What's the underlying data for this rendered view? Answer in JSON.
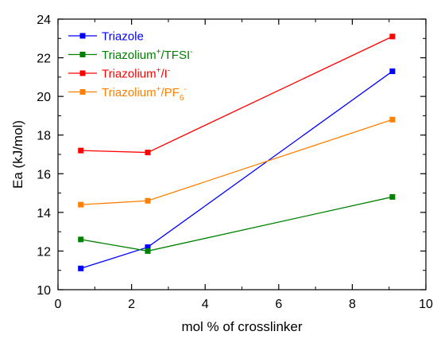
{
  "chart_data": {
    "type": "line",
    "title": "",
    "xlabel": "mol % of crosslinker",
    "ylabel": "Ea (kJ/mol)",
    "xlim": [
      0,
      10
    ],
    "ylim": [
      10,
      24
    ],
    "x_ticks": [
      0,
      2,
      4,
      6,
      8,
      10
    ],
    "y_ticks": [
      10,
      12,
      14,
      16,
      18,
      20,
      22,
      24
    ],
    "x_tick_labels": [
      "0",
      "2",
      "4",
      "6",
      "8",
      "10"
    ],
    "y_tick_labels": [
      "10",
      "12",
      "14",
      "16",
      "18",
      "20",
      "22",
      "24"
    ],
    "grid": false,
    "legend_position": "top-left",
    "marker": "square",
    "series": [
      {
        "name": "Triazole",
        "legend": {
          "base": "Triazole",
          "sup": "",
          "mid": "",
          "sub": "",
          "sup2": ""
        },
        "color": "#0000ff",
        "x": [
          0.62,
          2.44,
          9.09
        ],
        "y": [
          11.1,
          12.2,
          21.3
        ]
      },
      {
        "name": "Triazolium+/TFSI-",
        "legend": {
          "base": "Triazolium",
          "sup": "+",
          "mid": "/TFSI",
          "sub": "",
          "sup2": "-"
        },
        "color": "#008000",
        "x": [
          0.62,
          2.44,
          9.09
        ],
        "y": [
          12.6,
          12.0,
          14.8
        ]
      },
      {
        "name": "Triazolium+/I-",
        "legend": {
          "base": "Triazolium",
          "sup": "+",
          "mid": "/I",
          "sub": "",
          "sup2": "-"
        },
        "color": "#ff0000",
        "x": [
          0.62,
          2.44,
          9.09
        ],
        "y": [
          17.2,
          17.1,
          23.1
        ]
      },
      {
        "name": "Triazolium+/PF6-",
        "legend": {
          "base": "Triazolium",
          "sup": "+",
          "mid": "/PF",
          "sub": "6",
          "sup2": "-"
        },
        "color": "#ff8000",
        "x": [
          0.62,
          2.44,
          9.09
        ],
        "y": [
          14.4,
          14.6,
          18.8
        ]
      }
    ]
  }
}
